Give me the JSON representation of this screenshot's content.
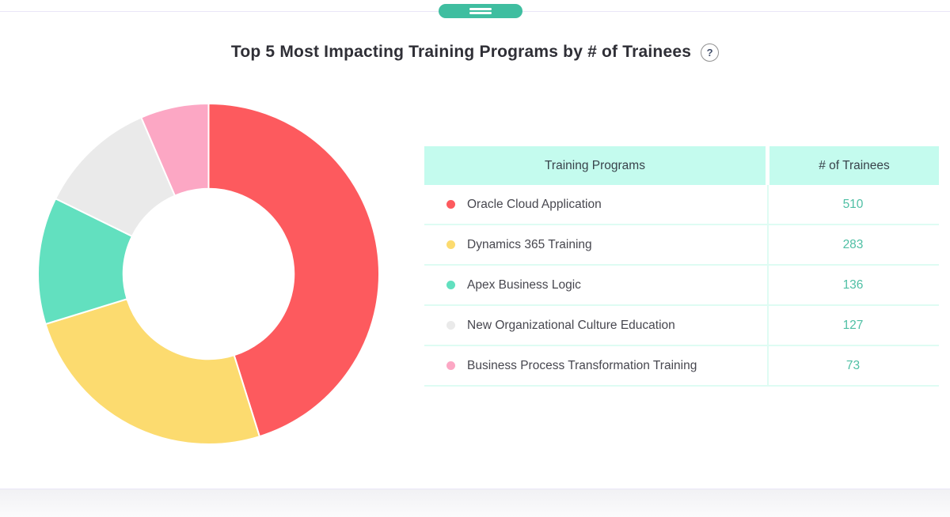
{
  "header": {
    "title": "Top 5 Most Impacting Training Programs by # of Trainees",
    "help_glyph": "?"
  },
  "chart_data": {
    "type": "pie",
    "variant": "donut",
    "title": "Top 5 Most Impacting Training Programs by # of Trainees",
    "start_angle_deg": 0,
    "direction": "clockwise",
    "inner_radius_ratio": 0.5,
    "total": 1129,
    "series": [
      {
        "label": "Oracle Cloud Application",
        "value": 510,
        "color": "#fd5a5e"
      },
      {
        "label": "Dynamics 365 Training",
        "value": 283,
        "color": "#fcdb6f"
      },
      {
        "label": "Apex Business Logic",
        "value": 136,
        "color": "#62e0bf"
      },
      {
        "label": "New Organizational Culture Education",
        "value": 127,
        "color": "#eaeaea"
      },
      {
        "label": "Business Process Transformation Training",
        "value": 73,
        "color": "#fca7c4"
      }
    ],
    "legend_position": "table-right"
  },
  "table": {
    "columns": [
      "Training Programs",
      "# of Trainees"
    ],
    "rows": [
      {
        "program": "Oracle Cloud Application",
        "trainees": "510"
      },
      {
        "program": "Dynamics 365 Training",
        "trainees": "283"
      },
      {
        "program": "Apex Business Logic",
        "trainees": "136"
      },
      {
        "program": "New Organizational Culture Education",
        "trainees": "127"
      },
      {
        "program": "Business Process Transformation Training",
        "trainees": "73"
      }
    ]
  },
  "colors": {
    "accent_teal": "#3fbea0",
    "header_mint": "#c4fbee",
    "table_border_mint": "#defcf3",
    "trainee_number_text": "#4ebfa4",
    "divider_lavender": "#e9e6f7"
  }
}
